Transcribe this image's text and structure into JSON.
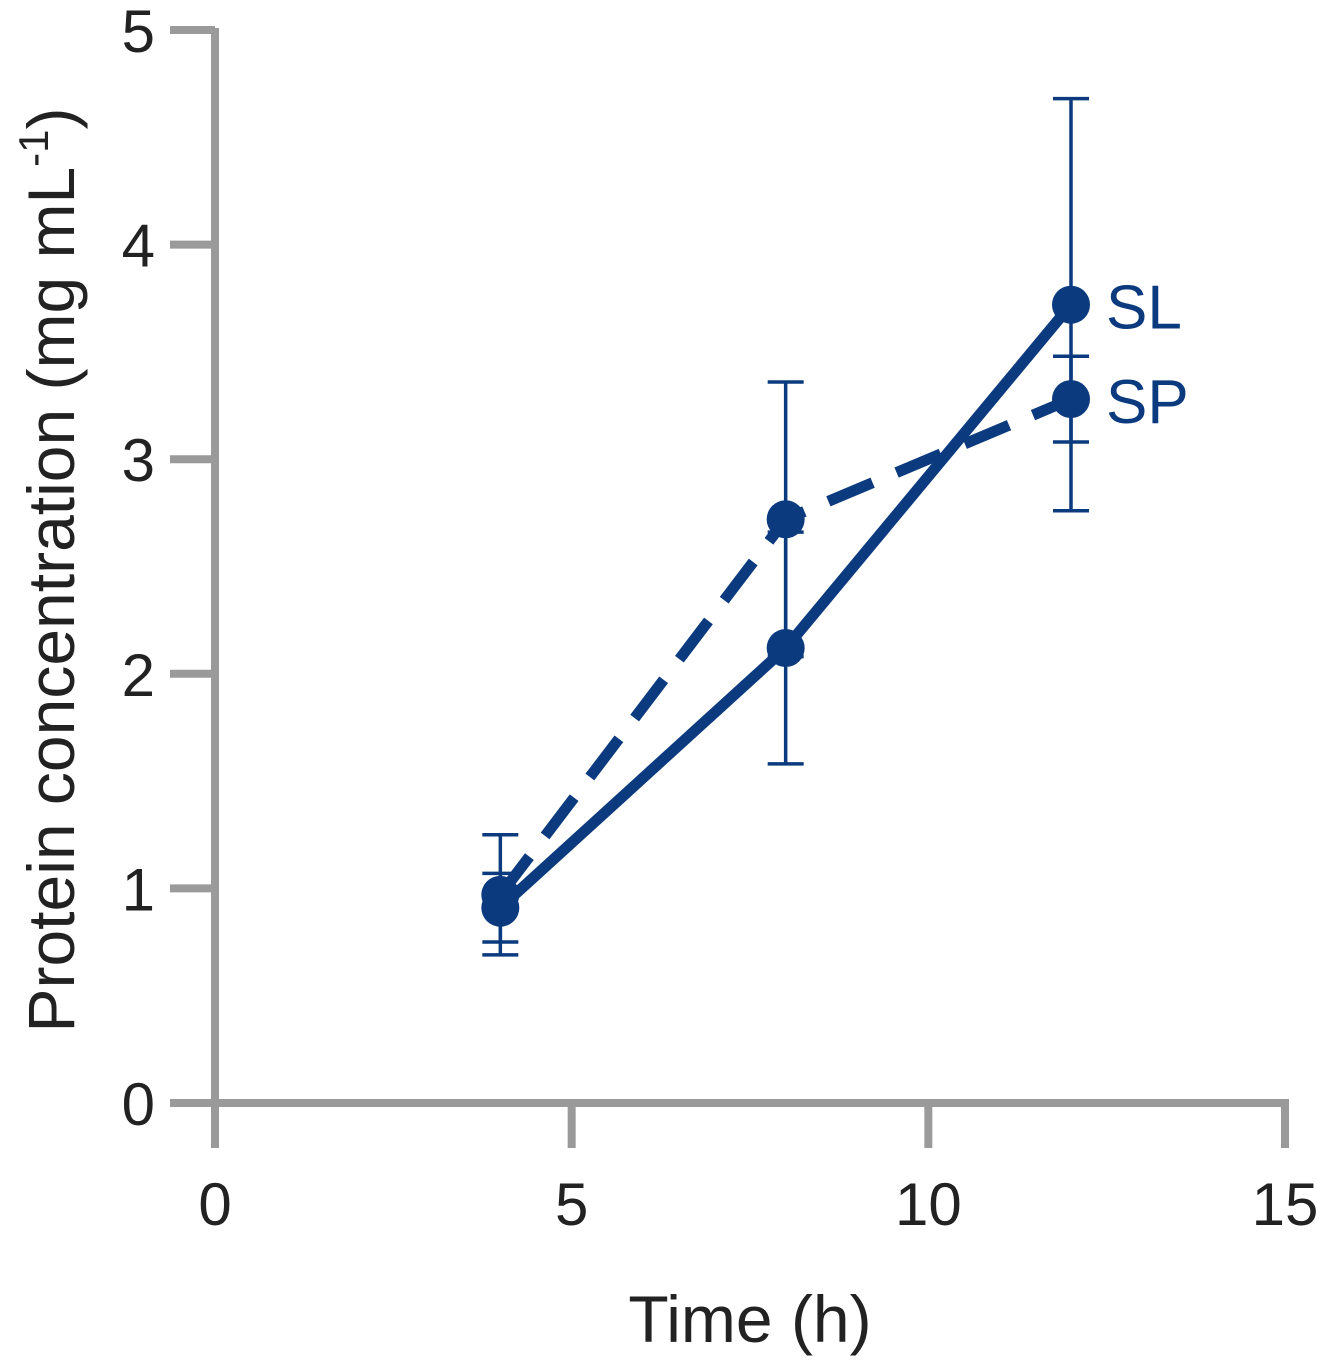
{
  "chart_data": {
    "type": "line",
    "xlabel": "Time (h)",
    "ylabel": "Protein concentration (mg mL",
    "ylabel_sup": "-1",
    "ylabel_close": ")",
    "xlim": [
      0,
      15
    ],
    "ylim": [
      0,
      5
    ],
    "xticks": [
      0,
      5,
      10,
      15
    ],
    "yticks": [
      0,
      1,
      2,
      3,
      4,
      5
    ],
    "grid": false,
    "legend": "inline labels at line ends",
    "colors": {
      "series": "#0b3a7e",
      "axis": "#9a9a9a",
      "text": "#222222"
    },
    "series": [
      {
        "name": "SL",
        "style": "solid",
        "x": [
          4,
          8,
          12
        ],
        "y": [
          0.91,
          2.12,
          3.72
        ],
        "error": [
          0.16,
          0.54,
          0.96
        ]
      },
      {
        "name": "SP",
        "style": "dashed",
        "x": [
          4,
          8,
          12
        ],
        "y": [
          0.97,
          2.72,
          3.28
        ],
        "error": [
          0.28,
          0.64,
          0.2
        ]
      }
    ]
  }
}
